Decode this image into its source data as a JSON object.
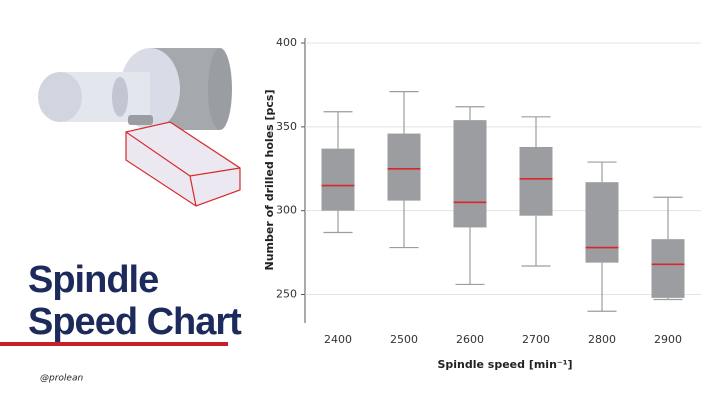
{
  "header": {
    "title_lines": [
      "Spindle",
      "Speed Chart"
    ],
    "credit": "@prolean"
  },
  "chart_data": {
    "type": "box",
    "x_label": "Spindle speed [min⁻¹]",
    "y_label": "Number of drilled holes [pcs]",
    "categories": [
      "2400",
      "2500",
      "2600",
      "2700",
      "2800",
      "2900"
    ],
    "min": [
      287,
      278,
      256,
      267,
      240,
      247
    ],
    "q1": [
      300,
      306,
      290,
      297,
      269,
      248
    ],
    "median": [
      315,
      325,
      305,
      319,
      278,
      268
    ],
    "q3": [
      337,
      346,
      354,
      338,
      317,
      283
    ],
    "max": [
      359,
      371,
      362,
      356,
      329,
      308
    ],
    "box_color": "#9b9da1",
    "median_color": "#d9262b",
    "whisker_color": "#9b9da1",
    "ylim": [
      233,
      403
    ],
    "yticks": [
      250,
      300,
      350,
      400
    ],
    "grid": true
  }
}
